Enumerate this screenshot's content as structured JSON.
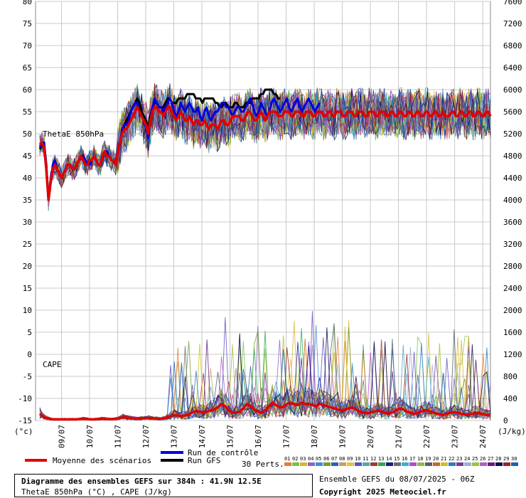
{
  "chart_data": {
    "type": "line",
    "title": "Diagramme des ensembles GEFS sur 384h : 41.9N 12.5E",
    "subtitle": "ThetaE 850hPa (°C) , CAPE (J/kg)",
    "credit_run": "Ensemble GEFS du 08/07/2025 - 06Z",
    "credit_copyright": "Copyright 2025 Meteociel.fr",
    "left_unit": "(°c)",
    "right_unit": "(J/kg)",
    "panel_labels": [
      "ThetaE 850hPa",
      "CAPE"
    ],
    "perts_label": "30 Perts.",
    "grid": true,
    "y_left": {
      "min": -15,
      "max": 80,
      "step": 5,
      "ticks": [
        "80",
        "75",
        "70",
        "65",
        "60",
        "55",
        "50",
        "45",
        "40",
        "35",
        "30",
        "25",
        "20",
        "15",
        "10",
        "5",
        "0",
        "-5",
        "-10",
        "-15"
      ]
    },
    "y_right": {
      "min": 0,
      "max": 7600,
      "step": 400,
      "ticks": [
        "7600",
        "7200",
        "6800",
        "6400",
        "6000",
        "5600",
        "5200",
        "4800",
        "4400",
        "4000",
        "3600",
        "3200",
        "2800",
        "2400",
        "2000",
        "1600",
        "1200",
        "800",
        "400",
        "0"
      ]
    },
    "x_days": [
      "09/07",
      "10/07",
      "11/07",
      "12/07",
      "13/07",
      "14/07",
      "15/07",
      "16/07",
      "17/07",
      "18/07",
      "19/07",
      "20/07",
      "21/07",
      "22/07",
      "23/07",
      "24/07"
    ],
    "x_steps_per_day": 4,
    "legend": [
      {
        "name": "Moyenne des scénarios",
        "color": "#e00000"
      },
      {
        "name": "Run de contrôle",
        "color": "#0000e0"
      },
      {
        "name": "Run GFS",
        "color": "#000000"
      }
    ],
    "member_labels": [
      "01",
      "02",
      "03",
      "04",
      "05",
      "06",
      "07",
      "08",
      "09",
      "10",
      "11",
      "12",
      "13",
      "14",
      "15",
      "16",
      "17",
      "18",
      "19",
      "20",
      "21",
      "22",
      "23",
      "24",
      "25",
      "26",
      "27",
      "28",
      "29",
      "30"
    ],
    "member_colors": [
      "#e87a33",
      "#7cc04a",
      "#d9b62b",
      "#8e62c9",
      "#3c8dd8",
      "#7a9a2a",
      "#2f5fb8",
      "#c9a15a",
      "#e2c23c",
      "#5f4fbf",
      "#4aa8b5",
      "#a33a2a",
      "#2fa84f",
      "#1a1a8a",
      "#6a6a6a",
      "#3ab0d0",
      "#b04ad0",
      "#8bbf3a",
      "#506070",
      "#c86a1a",
      "#d0c020",
      "#2a7ac0",
      "#7a3a8a",
      "#9ab0e0",
      "#a0c040",
      "#b060c0",
      "#602080",
      "#0a0a5a",
      "#a02020",
      "#1a60b0"
    ],
    "thetae_mean": [
      47.5,
      48,
      47,
      42,
      35,
      39,
      42,
      43,
      42,
      41,
      40,
      41,
      42,
      43,
      43,
      42,
      42,
      43,
      44,
      45,
      44,
      43,
      43,
      44,
      44,
      45,
      44,
      43,
      43,
      45,
      46,
      45,
      45,
      44,
      44,
      43,
      46,
      48,
      50,
      51,
      51,
      52,
      53,
      54,
      55,
      56,
      55,
      54,
      53,
      52,
      50,
      53,
      55,
      56,
      56,
      55,
      55,
      54,
      55,
      56,
      56,
      55,
      54,
      53,
      54,
      55,
      54,
      53,
      53,
      54,
      53,
      52,
      53,
      53,
      52,
      52,
      53,
      52,
      51,
      52,
      52,
      52,
      51,
      52,
      53,
      53,
      52,
      52,
      53,
      54,
      54,
      54,
      54,
      53,
      53,
      54,
      55,
      55,
      54,
      53,
      53,
      54,
      55,
      54,
      53,
      54,
      55,
      55,
      55,
      55,
      54,
      54,
      54,
      55,
      55,
      55,
      54,
      54,
      55,
      55,
      55,
      54,
      54,
      55,
      55,
      55,
      54,
      54,
      55,
      55,
      55,
      54,
      54,
      55,
      55,
      54,
      54,
      55,
      55,
      55,
      54,
      54,
      55,
      55,
      55,
      54,
      54,
      55,
      55,
      55,
      54,
      54,
      55,
      55,
      55,
      54,
      54,
      55,
      55,
      55,
      54,
      54,
      55,
      55,
      54,
      54,
      55,
      55,
      54,
      54,
      55,
      55,
      54,
      54,
      55,
      55,
      54,
      54,
      55,
      55,
      54,
      54,
      55,
      55,
      54,
      54,
      55,
      54,
      54,
      54,
      55,
      55,
      54,
      54,
      55,
      55,
      54,
      54,
      55,
      55,
      54,
      54,
      55,
      55,
      54,
      54,
      55,
      55,
      54
    ],
    "thetae_control": [
      47,
      48,
      48,
      43,
      35,
      39,
      43,
      44,
      42,
      41,
      40,
      41,
      42,
      43,
      43,
      42,
      42,
      43,
      44,
      45,
      45,
      44,
      43,
      43,
      44,
      45,
      44,
      43,
      43,
      45,
      46,
      46,
      45,
      44,
      44,
      43,
      46,
      48,
      51,
      52,
      52,
      53,
      55,
      56,
      57,
      57,
      55,
      54,
      53,
      51,
      49,
      53,
      56,
      58,
      57,
      56,
      56,
      55,
      56,
      57,
      58,
      57,
      55,
      54,
      55,
      57,
      56,
      55,
      56,
      57,
      56,
      55,
      55,
      56,
      54,
      53,
      55,
      56,
      54,
      53,
      54,
      55,
      55,
      56,
      57,
      57,
      56,
      56,
      55,
      54,
      55,
      56,
      56,
      55,
      55,
      56,
      57,
      58,
      57,
      55,
      54,
      55,
      57,
      56,
      55,
      54,
      55,
      57,
      58,
      57,
      56,
      55,
      56,
      57,
      58,
      56,
      55,
      56,
      57,
      58,
      56,
      55,
      56,
      57,
      58,
      57,
      56,
      55,
      56,
      57
    ],
    "thetae_gfs": [
      46.5,
      47.5,
      47,
      43,
      35,
      39,
      42,
      43,
      42,
      41,
      40,
      41,
      42,
      43,
      43,
      42,
      42,
      43,
      44,
      45,
      44,
      43,
      43,
      44,
      44,
      45,
      44,
      43,
      43,
      45,
      46,
      45,
      45,
      44,
      44,
      43,
      46,
      48,
      50,
      52,
      53,
      54,
      55,
      56,
      57,
      58,
      57,
      55,
      54,
      53,
      51,
      54,
      56,
      57,
      57,
      56,
      56,
      56,
      57,
      58,
      58,
      57,
      57,
      57,
      58,
      58,
      58,
      58,
      59,
      59,
      59,
      59,
      58,
      58,
      58,
      57,
      58,
      58,
      58,
      58,
      58,
      57,
      57,
      56,
      56,
      57,
      57,
      56,
      56,
      56,
      57,
      57,
      56,
      56,
      56,
      57,
      57,
      57,
      58,
      58,
      58,
      58,
      59,
      59,
      60,
      60,
      60,
      60,
      59,
      59,
      58,
      58
    ],
    "cape_mean": [
      120,
      60,
      40,
      25,
      20,
      20,
      20,
      20,
      20,
      20,
      20,
      25,
      30,
      25,
      20,
      20,
      25,
      30,
      30,
      25,
      25,
      30,
      40,
      60,
      50,
      40,
      35,
      30,
      35,
      40,
      45,
      40,
      35,
      30,
      40,
      55,
      80,
      100,
      90,
      80,
      90,
      110,
      150,
      170,
      160,
      150,
      160,
      180,
      200,
      240,
      300,
      260,
      180,
      140,
      140,
      160,
      220,
      300,
      260,
      200,
      160,
      140,
      180,
      250,
      320,
      280,
      240,
      240,
      300,
      320,
      300,
      280,
      320,
      300,
      300,
      280,
      260,
      300,
      280,
      260,
      240,
      220,
      200,
      180,
      200,
      220,
      240,
      200,
      160,
      140,
      130,
      140,
      160,
      180,
      160,
      140,
      120,
      150,
      180,
      220,
      200,
      160,
      140,
      120,
      130,
      160,
      190,
      170,
      150,
      130,
      110,
      100,
      120,
      140,
      150,
      140,
      120,
      110,
      100,
      120,
      140,
      130,
      110,
      100,
      90
    ]
  }
}
